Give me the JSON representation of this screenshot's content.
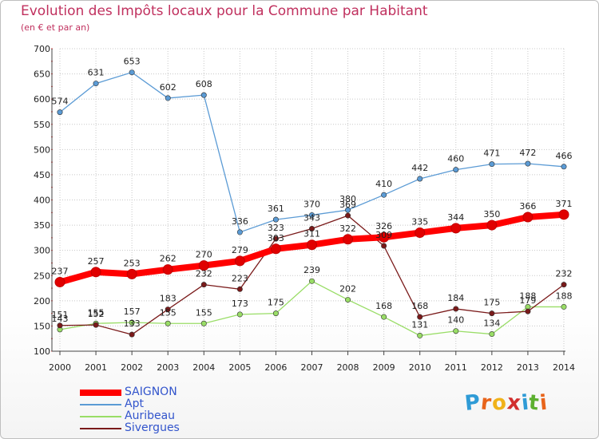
{
  "title": "Evolution des Impôts locaux pour la Commune par Habitant",
  "subtitle": "(en € et par an)",
  "logo": {
    "letters": [
      "P",
      "r",
      "o",
      "x",
      "i",
      "t",
      "i"
    ],
    "colors": [
      "#2f9bd6",
      "#e8641b",
      "#f0b21a",
      "#d12f2f",
      "#2f9bd6",
      "#5cb030",
      "#e8641b"
    ]
  },
  "chart_data": {
    "type": "line",
    "title": "Evolution des Impôts locaux pour la Commune par Habitant",
    "subtitle": "(en € et par an)",
    "x": [
      "2000",
      "2001",
      "2002",
      "2003",
      "2004",
      "2005",
      "2006",
      "2007",
      "2008",
      "2009",
      "2010",
      "2011",
      "2012",
      "2013",
      "2014"
    ],
    "ylim": [
      100,
      700
    ],
    "yticks": [
      100,
      150,
      200,
      250,
      300,
      350,
      400,
      450,
      500,
      550,
      600,
      650,
      700
    ],
    "grid": true,
    "legend_position": "bottom-left",
    "series": [
      {
        "name": "SAIGNON",
        "color": "#ff0000",
        "values": [
          237,
          257,
          253,
          262,
          270,
          279,
          303,
          311,
          322,
          326,
          335,
          344,
          350,
          366,
          371
        ],
        "labels": [
          "237",
          "257",
          "253",
          "262",
          "270",
          "279",
          "303",
          "311",
          "322",
          "326",
          "335",
          "344",
          "350",
          "366",
          "371"
        ]
      },
      {
        "name": "Apt",
        "color": "#5b9bd5",
        "values": [
          574,
          631,
          653,
          602,
          608,
          336,
          361,
          370,
          380,
          410,
          442,
          460,
          471,
          472,
          466
        ],
        "labels": [
          "574",
          "631",
          "653",
          "602",
          "608",
          "336",
          "361",
          "370",
          "380",
          "410",
          "442",
          "460",
          "471",
          "472",
          "466"
        ]
      },
      {
        "name": "Auribeau",
        "color": "#99dd66",
        "values": [
          143,
          155,
          157,
          155,
          155,
          173,
          175,
          239,
          202,
          168,
          131,
          140,
          134,
          188,
          188
        ],
        "labels": [
          "143",
          "155",
          "157",
          "155",
          "155",
          "173",
          "175",
          "239",
          "202",
          "168",
          "131",
          "140",
          "134",
          "188",
          "188"
        ]
      },
      {
        "name": "Sivergues",
        "color": "#7a1a1a",
        "values": [
          151,
          152,
          133,
          183,
          232,
          223,
          323,
          343,
          369,
          309,
          168,
          184,
          175,
          179,
          232
        ],
        "labels": [
          "151",
          "152",
          "133",
          "183",
          "232",
          "223",
          "323",
          "343",
          "369",
          "309",
          "168",
          "184",
          "175",
          "179",
          "232"
        ]
      }
    ]
  }
}
